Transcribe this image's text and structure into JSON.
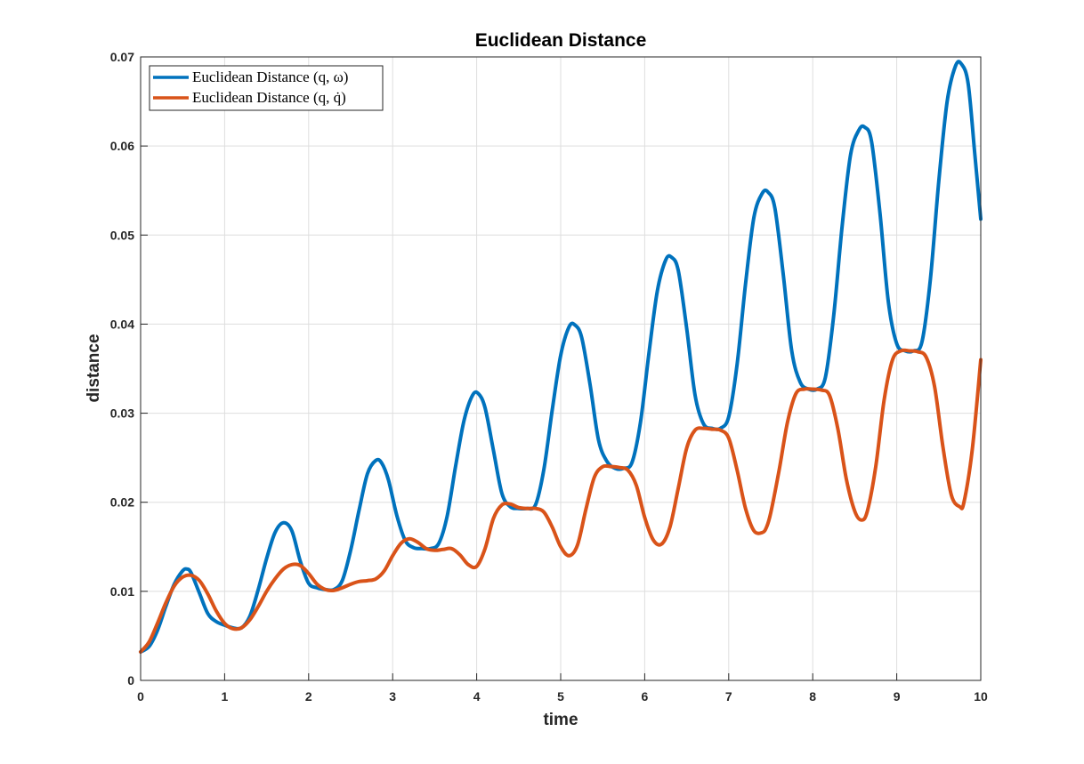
{
  "chart_data": {
    "type": "line",
    "title": "Euclidean Distance",
    "xlabel": "time",
    "ylabel": "distance",
    "xlim": [
      0,
      10
    ],
    "ylim": [
      0,
      0.07
    ],
    "xticks": [
      "0",
      "1",
      "2",
      "3",
      "4",
      "5",
      "6",
      "7",
      "8",
      "9",
      "10"
    ],
    "yticks": [
      "0",
      "0.01",
      "0.02",
      "0.03",
      "0.04",
      "0.05",
      "0.06",
      "0.07"
    ],
    "grid": true,
    "legend_position": "top-left",
    "colors": {
      "series1": "#0072BD",
      "series2": "#D95319",
      "grid": "#dedede",
      "axis": "#262626"
    },
    "series": [
      {
        "name": "Euclidean Distance (q, ω)",
        "x": [
          0,
          0.1,
          0.2,
          0.3,
          0.4,
          0.5,
          0.55,
          0.6,
          0.7,
          0.8,
          0.9,
          1.0,
          1.1,
          1.2,
          1.3,
          1.4,
          1.5,
          1.6,
          1.7,
          1.8,
          1.9,
          2.0,
          2.1,
          2.2,
          2.3,
          2.4,
          2.5,
          2.6,
          2.7,
          2.8,
          2.87,
          2.95,
          3.05,
          3.15,
          3.25,
          3.35,
          3.45,
          3.55,
          3.65,
          3.75,
          3.85,
          3.95,
          4.02,
          4.1,
          4.2,
          4.3,
          4.4,
          4.5,
          4.6,
          4.7,
          4.8,
          4.9,
          5.0,
          5.1,
          5.17,
          5.25,
          5.35,
          5.45,
          5.55,
          5.65,
          5.75,
          5.85,
          5.95,
          6.05,
          6.15,
          6.25,
          6.32,
          6.4,
          6.5,
          6.6,
          6.7,
          6.8,
          6.9,
          7.0,
          7.1,
          7.2,
          7.3,
          7.4,
          7.47,
          7.55,
          7.65,
          7.75,
          7.85,
          7.95,
          8.05,
          8.15,
          8.25,
          8.35,
          8.45,
          8.55,
          8.62,
          8.7,
          8.8,
          8.9,
          9.0,
          9.1,
          9.2,
          9.3,
          9.4,
          9.5,
          9.6,
          9.7,
          9.77,
          9.85,
          9.93,
          10.0
        ],
        "values": [
          0.0032,
          0.0038,
          0.0056,
          0.0083,
          0.0108,
          0.0123,
          0.0125,
          0.0121,
          0.0098,
          0.0075,
          0.0066,
          0.0062,
          0.0059,
          0.0059,
          0.0072,
          0.0102,
          0.0137,
          0.0166,
          0.0177,
          0.0168,
          0.0134,
          0.0109,
          0.0104,
          0.0102,
          0.0102,
          0.0112,
          0.0146,
          0.0191,
          0.0232,
          0.0247,
          0.0244,
          0.0225,
          0.0185,
          0.0157,
          0.0149,
          0.0148,
          0.0148,
          0.0154,
          0.0185,
          0.0241,
          0.0292,
          0.032,
          0.0322,
          0.0306,
          0.0258,
          0.021,
          0.0195,
          0.0193,
          0.0193,
          0.0197,
          0.0237,
          0.0304,
          0.0365,
          0.0397,
          0.0399,
          0.0385,
          0.0332,
          0.027,
          0.0246,
          0.0238,
          0.0238,
          0.0245,
          0.029,
          0.0367,
          0.0437,
          0.0472,
          0.0475,
          0.046,
          0.0395,
          0.032,
          0.0288,
          0.0283,
          0.0283,
          0.0296,
          0.0355,
          0.0445,
          0.052,
          0.0547,
          0.0548,
          0.053,
          0.0455,
          0.037,
          0.0335,
          0.0327,
          0.0327,
          0.034,
          0.041,
          0.051,
          0.059,
          0.0618,
          0.0621,
          0.0605,
          0.0525,
          0.0425,
          0.0378,
          0.037,
          0.037,
          0.038,
          0.045,
          0.056,
          0.065,
          0.069,
          0.0692,
          0.067,
          0.059,
          0.0518
        ]
      },
      {
        "name": "Euclidean Distance (q, q̇)",
        "x": [
          0,
          0.1,
          0.2,
          0.3,
          0.4,
          0.5,
          0.6,
          0.7,
          0.8,
          0.9,
          1.0,
          1.1,
          1.2,
          1.3,
          1.4,
          1.5,
          1.6,
          1.7,
          1.8,
          1.9,
          2.0,
          2.1,
          2.2,
          2.3,
          2.4,
          2.5,
          2.6,
          2.7,
          2.8,
          2.9,
          3.0,
          3.1,
          3.2,
          3.3,
          3.4,
          3.5,
          3.6,
          3.7,
          3.8,
          3.9,
          4.0,
          4.1,
          4.2,
          4.3,
          4.4,
          4.5,
          4.6,
          4.7,
          4.8,
          4.9,
          5.0,
          5.1,
          5.2,
          5.3,
          5.4,
          5.5,
          5.6,
          5.7,
          5.8,
          5.9,
          6.0,
          6.1,
          6.2,
          6.3,
          6.4,
          6.5,
          6.6,
          6.7,
          6.8,
          6.9,
          7.0,
          7.1,
          7.2,
          7.3,
          7.4,
          7.45,
          7.5,
          7.6,
          7.7,
          7.8,
          7.9,
          8.0,
          8.1,
          8.2,
          8.3,
          8.4,
          8.5,
          8.58,
          8.65,
          8.75,
          8.85,
          8.95,
          9.05,
          9.15,
          9.25,
          9.35,
          9.45,
          9.55,
          9.65,
          9.75,
          9.8,
          9.9,
          10.0
        ],
        "values": [
          0.0032,
          0.0043,
          0.0064,
          0.0087,
          0.0106,
          0.0116,
          0.0118,
          0.0112,
          0.0097,
          0.0078,
          0.0064,
          0.0058,
          0.0059,
          0.0068,
          0.0083,
          0.01,
          0.0114,
          0.0125,
          0.013,
          0.0129,
          0.012,
          0.0108,
          0.0102,
          0.0101,
          0.0104,
          0.0108,
          0.0111,
          0.0112,
          0.0114,
          0.0123,
          0.014,
          0.0154,
          0.0159,
          0.0155,
          0.0148,
          0.0146,
          0.0147,
          0.0148,
          0.0141,
          0.013,
          0.0128,
          0.0148,
          0.0182,
          0.0197,
          0.0198,
          0.0194,
          0.0193,
          0.0193,
          0.0189,
          0.0172,
          0.015,
          0.014,
          0.0152,
          0.0192,
          0.0228,
          0.024,
          0.024,
          0.0239,
          0.0236,
          0.0219,
          0.0183,
          0.0158,
          0.0153,
          0.0172,
          0.0216,
          0.0261,
          0.0281,
          0.0283,
          0.0282,
          0.0281,
          0.0272,
          0.0236,
          0.0193,
          0.0168,
          0.0166,
          0.0172,
          0.0188,
          0.0236,
          0.029,
          0.0322,
          0.0327,
          0.0327,
          0.0326,
          0.032,
          0.0282,
          0.0226,
          0.019,
          0.018,
          0.019,
          0.024,
          0.0315,
          0.036,
          0.037,
          0.037,
          0.0369,
          0.0363,
          0.033,
          0.0262,
          0.0208,
          0.0195,
          0.02,
          0.026,
          0.036
        ]
      }
    ]
  }
}
